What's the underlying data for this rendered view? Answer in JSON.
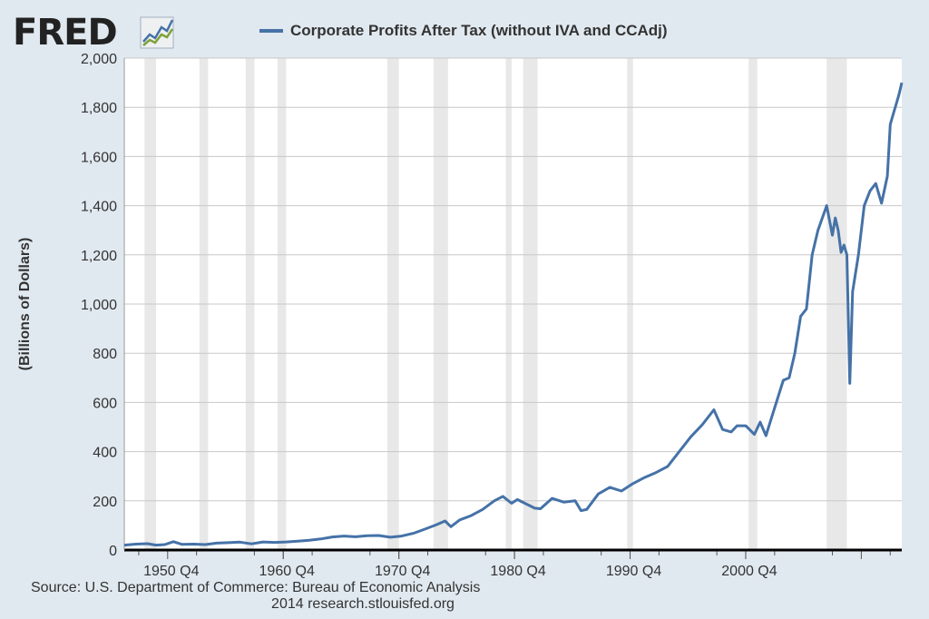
{
  "logo": {
    "text": "FRED",
    "registered": "®"
  },
  "colors": {
    "line": "#4572a7",
    "recession": "#e8e8e8",
    "grid": "#c8c8c8",
    "plot_bg": "#ffffff",
    "page_bg": "#e1e9f0"
  },
  "chart_data": {
    "type": "line",
    "title": "",
    "xlabel": "",
    "ylabel": "(Billions of Dollars)",
    "ylim": [
      0,
      2000
    ],
    "yticks": [
      "0",
      "200",
      "400",
      "600",
      "800",
      "1,000",
      "1,200",
      "1,400",
      "1,600",
      "1,800",
      "2,000"
    ],
    "xlim": [
      1947.0,
      2014.25
    ],
    "xticks": [
      {
        "label": "1950 Q4",
        "x": 1950.75
      },
      {
        "label": "1960 Q4",
        "x": 1960.75
      },
      {
        "label": "1970 Q4",
        "x": 1970.75
      },
      {
        "label": "1980 Q4",
        "x": 1980.75
      },
      {
        "label": "1990 Q4",
        "x": 1990.75
      },
      {
        "label": "2000 Q4",
        "x": 2000.75
      }
    ],
    "grid": true,
    "legend_position": "top",
    "recessions": [
      [
        1948.75,
        1949.75
      ],
      [
        1953.5,
        1954.25
      ],
      [
        1957.5,
        1958.25
      ],
      [
        1960.25,
        1961.0
      ],
      [
        1969.75,
        1970.75
      ],
      [
        1973.75,
        1975.0
      ],
      [
        1980.0,
        1980.5
      ],
      [
        1981.5,
        1982.75
      ],
      [
        1990.5,
        1991.0
      ],
      [
        2001.0,
        2001.75
      ],
      [
        2007.75,
        2009.5
      ]
    ],
    "series": [
      {
        "name": "Corporate Profits After Tax (without IVA and CCAdj)",
        "points": [
          [
            1947.0,
            20
          ],
          [
            1948.0,
            24
          ],
          [
            1949.0,
            26
          ],
          [
            1949.75,
            20
          ],
          [
            1950.5,
            22
          ],
          [
            1951.25,
            34
          ],
          [
            1952.0,
            23
          ],
          [
            1953.0,
            24
          ],
          [
            1954.0,
            22
          ],
          [
            1955.0,
            28
          ],
          [
            1956.0,
            30
          ],
          [
            1957.0,
            32
          ],
          [
            1958.0,
            25
          ],
          [
            1959.0,
            33
          ],
          [
            1960.0,
            31
          ],
          [
            1961.0,
            33
          ],
          [
            1962.0,
            36
          ],
          [
            1963.0,
            40
          ],
          [
            1964.0,
            45
          ],
          [
            1965.0,
            53
          ],
          [
            1966.0,
            57
          ],
          [
            1967.0,
            54
          ],
          [
            1968.0,
            58
          ],
          [
            1969.0,
            59
          ],
          [
            1970.0,
            52
          ],
          [
            1971.0,
            57
          ],
          [
            1972.0,
            68
          ],
          [
            1973.0,
            85
          ],
          [
            1974.0,
            103
          ],
          [
            1974.75,
            118
          ],
          [
            1975.25,
            95
          ],
          [
            1976.0,
            122
          ],
          [
            1977.0,
            140
          ],
          [
            1978.0,
            165
          ],
          [
            1979.0,
            200
          ],
          [
            1979.75,
            218
          ],
          [
            1980.5,
            190
          ],
          [
            1981.0,
            205
          ],
          [
            1981.75,
            188
          ],
          [
            1982.5,
            170
          ],
          [
            1983.0,
            168
          ],
          [
            1984.0,
            210
          ],
          [
            1985.0,
            195
          ],
          [
            1986.0,
            200
          ],
          [
            1986.5,
            160
          ],
          [
            1987.0,
            165
          ],
          [
            1988.0,
            228
          ],
          [
            1989.0,
            255
          ],
          [
            1990.0,
            240
          ],
          [
            1991.0,
            270
          ],
          [
            1992.0,
            295
          ],
          [
            1993.0,
            315
          ],
          [
            1994.0,
            340
          ],
          [
            1995.0,
            400
          ],
          [
            1996.0,
            460
          ],
          [
            1997.0,
            510
          ],
          [
            1998.0,
            570
          ],
          [
            1998.75,
            490
          ],
          [
            1999.5,
            480
          ],
          [
            2000.0,
            505
          ],
          [
            2000.75,
            505
          ],
          [
            2001.5,
            470
          ],
          [
            2002.0,
            520
          ],
          [
            2002.5,
            465
          ],
          [
            2003.0,
            540
          ],
          [
            2004.0,
            690
          ],
          [
            2004.5,
            700
          ],
          [
            2005.0,
            800
          ],
          [
            2005.5,
            950
          ],
          [
            2006.0,
            980
          ],
          [
            2006.5,
            1200
          ],
          [
            2007.0,
            1300
          ],
          [
            2007.75,
            1400
          ],
          [
            2008.25,
            1280
          ],
          [
            2008.5,
            1350
          ],
          [
            2008.75,
            1300
          ],
          [
            2009.0,
            1210
          ],
          [
            2009.25,
            1240
          ],
          [
            2009.5,
            1200
          ],
          [
            2009.75,
            678
          ],
          [
            2010.0,
            1050
          ],
          [
            2010.5,
            1200
          ],
          [
            2011.0,
            1400
          ],
          [
            2011.5,
            1460
          ],
          [
            2012.0,
            1490
          ],
          [
            2012.5,
            1410
          ],
          [
            2013.0,
            1520
          ],
          [
            2013.25,
            1730
          ],
          [
            2013.5,
            1770
          ],
          [
            2013.75,
            1810
          ],
          [
            2014.0,
            1850
          ],
          [
            2014.25,
            1900
          ]
        ]
      }
    ]
  },
  "source_line": "Source: U.S. Department of Commerce: Bureau of Economic Analysis",
  "credit_line": "2014 research.stlouisfed.org"
}
